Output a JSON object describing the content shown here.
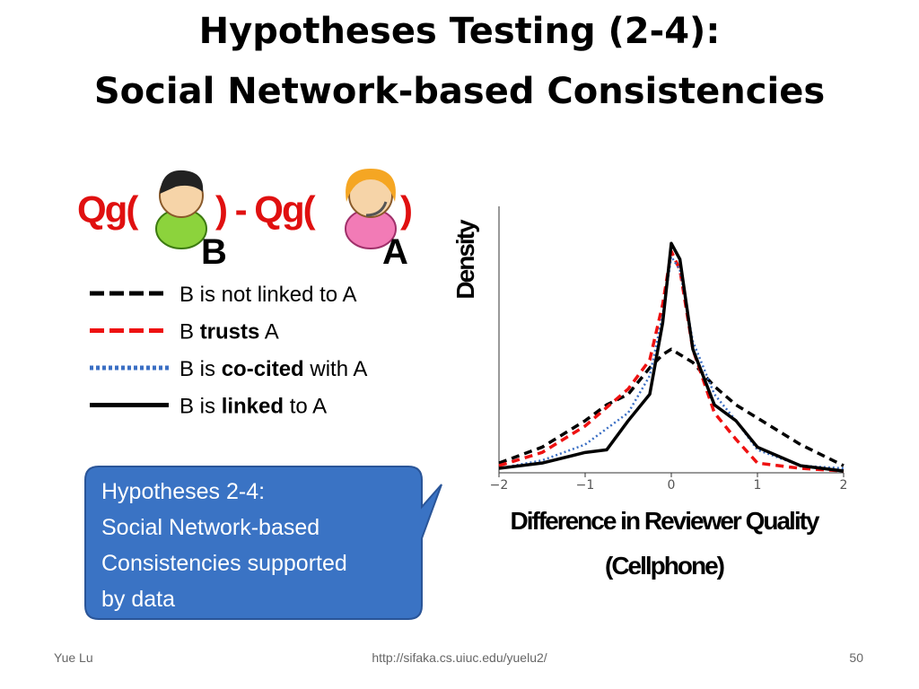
{
  "title": [
    "Hypotheses Testing (2-4):",
    "Social Network-based Consistencies"
  ],
  "formula": {
    "left": "Qg(",
    "middle": ") - Qg(",
    "right": ")",
    "user1": "B",
    "user2": "A"
  },
  "callout": [
    "Hypotheses 2-4:",
    "Social Network-based",
    "Consistencies supported",
    "by data"
  ],
  "footer": {
    "author": "Yue Lu",
    "url": "http://sifaka.cs.uiuc.edu/yuelu2/",
    "page": "50"
  },
  "chart_data": {
    "type": "line",
    "ylabel": "Density",
    "xlabel": [
      "Difference in Reviewer Quality",
      "(Cellphone)"
    ],
    "x": [
      -2,
      -1.5,
      -1,
      -0.75,
      -0.5,
      -0.25,
      -0.1,
      0,
      0.1,
      0.25,
      0.5,
      0.75,
      1,
      1.5,
      2
    ],
    "xlim": [
      -2,
      2
    ],
    "xticks": [
      {
        "value": -2,
        "label": "−2"
      },
      {
        "value": -1,
        "label": "−1"
      },
      0,
      1,
      2
    ],
    "ylim": [
      0,
      1
    ],
    "series": [
      {
        "name": [
          "B is not linked to A"
        ],
        "color": "#000000",
        "dash": "dashed",
        "values": [
          0.03,
          0.09,
          0.19,
          0.25,
          0.29,
          0.39,
          0.44,
          0.46,
          0.44,
          0.41,
          0.32,
          0.25,
          0.2,
          0.1,
          0.02
        ]
      },
      {
        "name": [
          "B ",
          "trusts",
          " A"
        ],
        "color": "#ee1111",
        "dash": "dashed",
        "values": [
          0.02,
          0.07,
          0.17,
          0.24,
          0.31,
          0.42,
          0.63,
          0.83,
          0.76,
          0.46,
          0.22,
          0.12,
          0.03,
          0.01,
          0
        ]
      },
      {
        "name": [
          "B is ",
          "co-cited",
          " with A"
        ],
        "color": "#3b6fc4",
        "dash": "dotted",
        "values": [
          0.01,
          0.04,
          0.1,
          0.16,
          0.22,
          0.36,
          0.59,
          0.81,
          0.76,
          0.49,
          0.29,
          0.19,
          0.08,
          0.02,
          0.01
        ]
      },
      {
        "name": [
          "B is ",
          "linked",
          " to A"
        ],
        "color": "#000000",
        "dash": "solid",
        "values": [
          0.01,
          0.03,
          0.07,
          0.08,
          0.19,
          0.29,
          0.56,
          0.86,
          0.8,
          0.46,
          0.25,
          0.19,
          0.09,
          0.02,
          0
        ]
      }
    ]
  }
}
